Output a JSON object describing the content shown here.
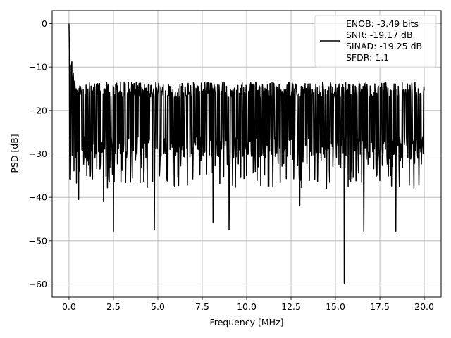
{
  "chart_data": {
    "type": "line",
    "title": "",
    "xlabel": "Frequency [MHz]",
    "ylabel": "PSD [dB]",
    "xlim": [
      -0.95,
      20.95
    ],
    "ylim": [
      -63,
      3
    ],
    "x_ticks": [
      0.0,
      2.5,
      5.0,
      7.5,
      10.0,
      12.5,
      15.0,
      17.5,
      20.0
    ],
    "x_tick_labels": [
      "0.0",
      "2.5",
      "5.0",
      "7.5",
      "10.0",
      "12.5",
      "15.0",
      "17.5",
      "20.0"
    ],
    "y_ticks": [
      0,
      -10,
      -20,
      -30,
      -40,
      -50,
      -60
    ],
    "y_tick_labels": [
      "0",
      "−10",
      "−20",
      "−30",
      "−40",
      "−50",
      "−60"
    ],
    "grid": true,
    "legend_position": "top-right",
    "legend_entries": [
      "ENOB: -3.49 bits",
      "SNR: -19.17 dB",
      "SINAD: -19.25 dB",
      "SFDR: 1.1"
    ],
    "series_color": "#000000",
    "series": [
      {
        "name": "ENOB: -3.49 bits",
        "x_range": [
          0.0,
          20.0
        ],
        "num_points": 1000,
        "peak": {
          "x": 0.0,
          "y": 0.0
        },
        "noise_floor_band": [
          -30,
          -13
        ],
        "notable_dips": [
          {
            "x": 0.55,
            "y": -40.5
          },
          {
            "x": 1.95,
            "y": -41
          },
          {
            "x": 2.5,
            "y": -47.8
          },
          {
            "x": 4.8,
            "y": -47.5
          },
          {
            "x": 8.1,
            "y": -45.8
          },
          {
            "x": 9.0,
            "y": -47.5
          },
          {
            "x": 13.0,
            "y": -42
          },
          {
            "x": 15.5,
            "y": -59.8
          },
          {
            "x": 16.6,
            "y": -47.8
          },
          {
            "x": 18.4,
            "y": -47.8
          }
        ]
      }
    ]
  }
}
